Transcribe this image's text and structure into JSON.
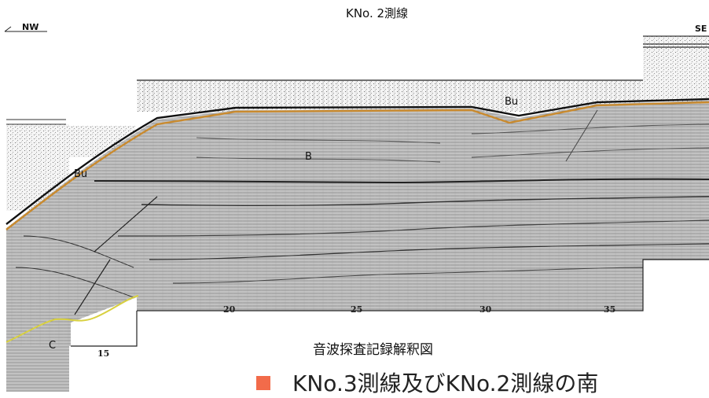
{
  "profile": {
    "title": "KNo. 2測線",
    "direction_left": "NW",
    "direction_right": "SE",
    "ticks": [
      "15",
      "20",
      "25",
      "30",
      "35"
    ],
    "layers": {
      "bu_left": "Bu",
      "bu_right": "Bu",
      "b": "B",
      "c": "C"
    }
  },
  "caption": "音波探査記録解釈図",
  "bullet_text": "KNo.3測線及びKNo.2測線の南",
  "colors": {
    "bu_horizon": "#c98a2e",
    "c_horizon": "#d8d040",
    "bullet": "#f26b4a"
  }
}
